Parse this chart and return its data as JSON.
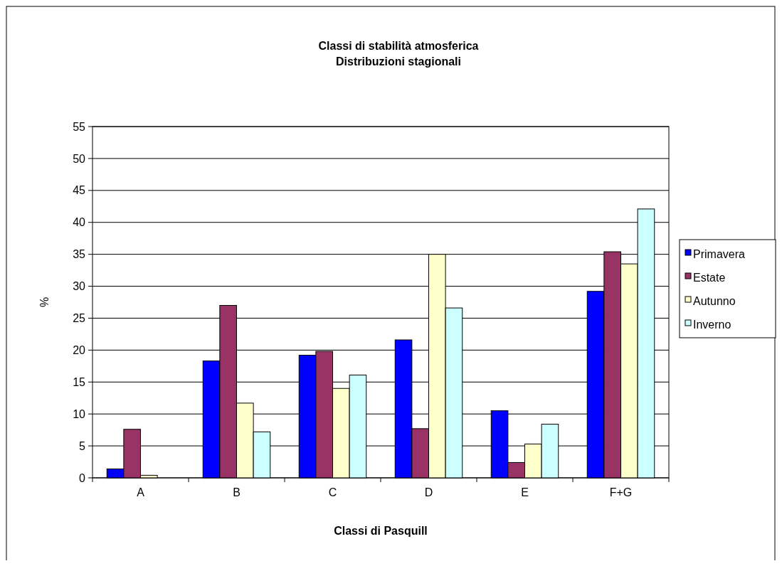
{
  "chart_data": {
    "type": "bar",
    "title": "Classi di stabilità atmosferica\nDistribuzioni stagionali",
    "xlabel": "Classi di Pasquill",
    "ylabel": "%",
    "categories": [
      "A",
      "B",
      "C",
      "D",
      "E",
      "F+G"
    ],
    "series": [
      {
        "name": "Primavera",
        "color": "#0000ff",
        "values": [
          1.4,
          18.3,
          19.2,
          21.6,
          10.5,
          29.2
        ]
      },
      {
        "name": "Estate",
        "color": "#993366",
        "values": [
          7.6,
          27,
          19.8,
          7.7,
          2.4,
          35.4
        ]
      },
      {
        "name": "Autunno",
        "color": "#ffffcc",
        "values": [
          0.4,
          11.7,
          14,
          35,
          5.3,
          33.5
        ]
      },
      {
        "name": "Inverno",
        "color": "#ccffff",
        "values": [
          0,
          7.2,
          16.1,
          26.6,
          8.4,
          42.1
        ]
      }
    ],
    "ylim": [
      0,
      55
    ],
    "yticks": [
      0,
      5,
      10,
      15,
      20,
      25,
      30,
      35,
      40,
      45,
      50,
      55
    ],
    "grid": "y",
    "legend": "right"
  }
}
